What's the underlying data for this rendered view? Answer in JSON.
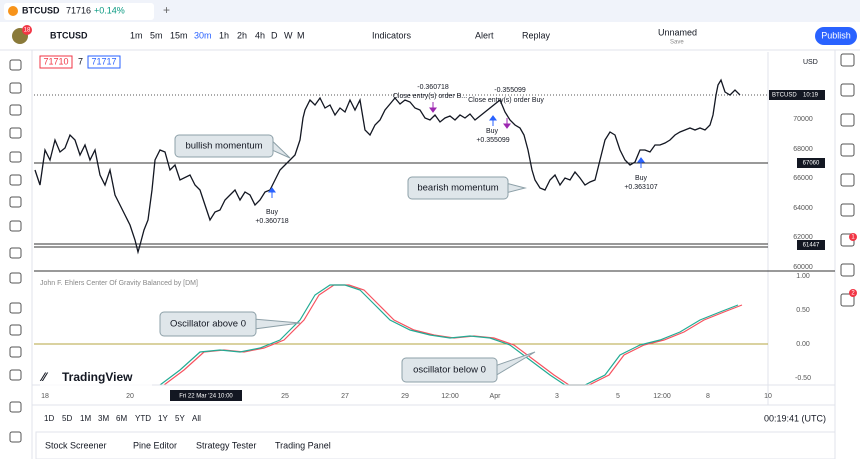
{
  "header": {
    "symbol_tab": "BTCUSD",
    "price": "71716",
    "change": "+0.14%",
    "new_tab": "+",
    "avatar_badge": "18"
  },
  "toolbar": {
    "symbol": "BTCUSD",
    "intervals": [
      "1m",
      "5m",
      "15m",
      "30m",
      "1h",
      "2h",
      "4h",
      "D",
      "W",
      "M"
    ],
    "indicators": "Indicators",
    "alert": "Alert",
    "replay": "Replay",
    "layout_name": "Unnamed",
    "save": "Save",
    "publish": "Publish"
  },
  "legend": {
    "open": "71710",
    "spread": "7",
    "close": "71717"
  },
  "price_axis": {
    "currency": "USD",
    "labels": [
      "70000",
      "68000",
      "66000",
      "64000",
      "62000",
      "60000"
    ],
    "current_symbol": "BTCUSD",
    "current_time": "10:19",
    "level_1": "67060",
    "level_2": "61447"
  },
  "annotations": [
    "-0.360718",
    "Close entry(s) order B...",
    "-0.355099",
    "Close entry(s) order Buy",
    "Buy",
    "+0.355099",
    "Buy",
    "+0.360718",
    "Buy",
    "+0.363107"
  ],
  "callouts": [
    "bullish momentum",
    "bearish momentum",
    "Oscillator above 0",
    "oscillator below 0"
  ],
  "oscillator": {
    "title": "John F. Ehlers Center Of Gravity Balanced by [DM]",
    "labels": [
      "1.00",
      "0.50",
      "0.00",
      "-0.50"
    ]
  },
  "time_axis": {
    "labels": [
      "18",
      "20",
      "25",
      "27",
      "29",
      "12:00",
      "Apr",
      "3",
      "5",
      "12:00",
      "8",
      "10"
    ],
    "cursor": "Fri 22 Mar '24  10:00"
  },
  "logo": "TradingView",
  "ranges": [
    "1D",
    "5D",
    "1M",
    "3M",
    "6M",
    "YTD",
    "1Y",
    "5Y",
    "All"
  ],
  "clock": "00:19:41 (UTC)",
  "bottom_panel": [
    "Stock Screener",
    "Pine Editor",
    "Strategy Tester",
    "Trading Panel"
  ],
  "sidebar_badges": [
    "1",
    "2"
  ]
}
